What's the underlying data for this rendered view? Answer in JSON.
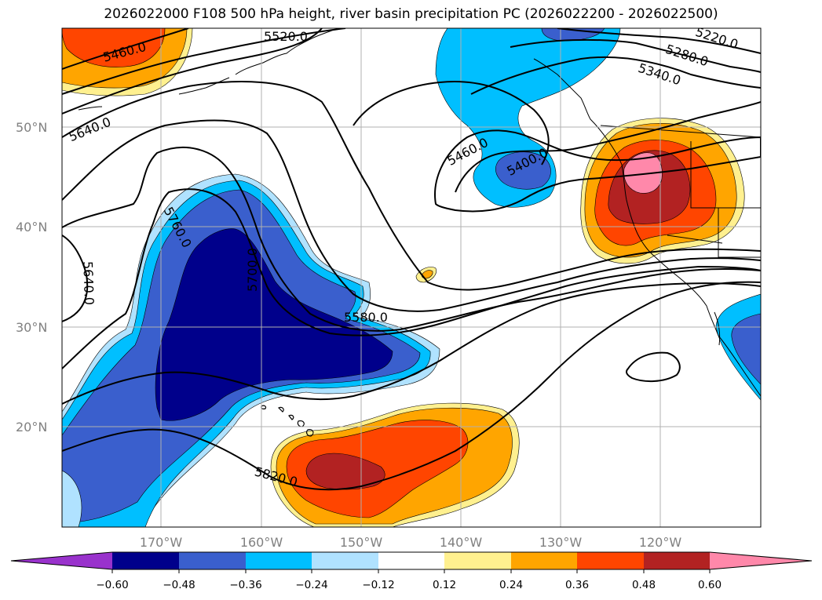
{
  "title": "2026022000 F108 500 hPa height, river basin precipitation PC (2026022200 - 2026022500)",
  "lat_ticks": [
    "50°N",
    "40°N",
    "30°N",
    "20°N"
  ],
  "lon_ticks": [
    "170°W",
    "160°W",
    "150°W",
    "140°W",
    "130°W",
    "120°W"
  ],
  "contour_labels": [
    "5460.0",
    "5520.0",
    "5220.0",
    "5280.0",
    "5340.0",
    "5640.0",
    "5460.0",
    "5400.0",
    "5760.0",
    "5640.0",
    "5700.0",
    "5580.0",
    "5820.0"
  ],
  "colorbar": {
    "labels": [
      "−0.60",
      "−0.48",
      "−0.36",
      "−0.24",
      "−0.12",
      "0.12",
      "0.24",
      "0.36",
      "0.48",
      "0.60"
    ],
    "colors": [
      "#9932cc",
      "#00008b",
      "#3a5fcd",
      "#00bfff",
      "#b0e2ff",
      "#ffffff",
      "#fff08f",
      "#ffa500",
      "#ff4500",
      "#b22222",
      "#ff88aa"
    ]
  },
  "colors": {
    "c_m060": "#00008b",
    "c_m048": "#3a5fcd",
    "c_m036": "#00bfff",
    "c_m024": "#b0e2ff",
    "c_012": "#fff08f",
    "c_024": "#ffa500",
    "c_036": "#ff4500",
    "c_048": "#b22222",
    "c_060": "#ff88aa"
  }
}
